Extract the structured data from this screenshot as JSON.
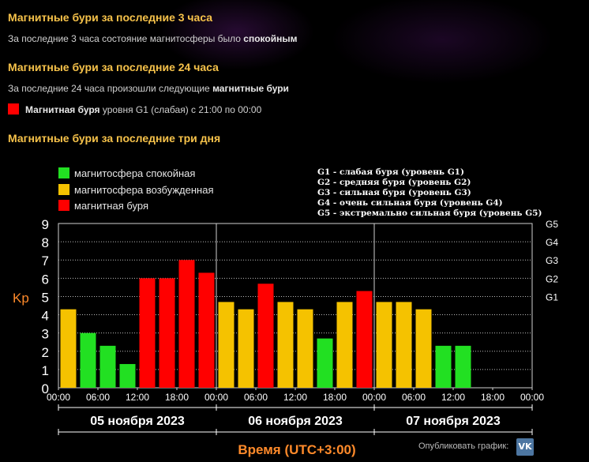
{
  "sections": {
    "h1": "Магнитные бури за последние 3 часа",
    "p1_text": "За последние 3 часа состояние магнитосферы было ",
    "p1_bold": "спокойным",
    "h2": "Магнитные бури за последние 24 часа",
    "p2_text": "За последние 24 часа произошли следующие ",
    "p2_bold": "магнитные бури",
    "event_bold": "Магнитная буря",
    "event_text": " уровня G1 (слабая) с 21:00 по 00:00",
    "h3": "Магнитные бури за последние три дня"
  },
  "legend": [
    {
      "label": "магнитосфера спокойная",
      "color": "#22e022"
    },
    {
      "label": "магнитосфера возбужденная",
      "color": "#f5c200"
    },
    {
      "label": "магнитная буря",
      "color": "#ff0000"
    }
  ],
  "g_levels": [
    "G1 - слабая буря (уровень G1)",
    "G2 - средняя буря (уровень G2)",
    "G3 - сильная буря (уровень G3)",
    "G4 - очень сильная буря (уровень G4)",
    "G5 - экстремально сильная буря (уровень G5)"
  ],
  "publish": {
    "label": "Опубликовать график:",
    "icon": "vk-icon",
    "icon_text": "VK"
  },
  "colors": {
    "calm": "#22e022",
    "excited": "#f5c200",
    "storm": "#ff0000",
    "heading": "#f6c24a",
    "axis_title": "#ff8a2a"
  },
  "chart_data": {
    "type": "bar",
    "ylabel": "Kp",
    "xlabel": "Время (UTC+3:00)",
    "ylim": [
      0,
      9
    ],
    "yticks": [
      0,
      1,
      2,
      3,
      4,
      5,
      6,
      7,
      8,
      9
    ],
    "right_ticks": [
      {
        "label": "G1",
        "value": 5
      },
      {
        "label": "G2",
        "value": 6
      },
      {
        "label": "G3",
        "value": 7
      },
      {
        "label": "G4",
        "value": 8
      },
      {
        "label": "G5",
        "value": 9
      }
    ],
    "xticks": [
      "00:00",
      "06:00",
      "12:00",
      "18:00",
      "00:00",
      "06:00",
      "12:00",
      "18:00",
      "00:00",
      "06:00",
      "12:00",
      "18:00",
      "00:00"
    ],
    "days": [
      "05 ноября 2023",
      "06 ноября 2023",
      "07 ноября 2023"
    ],
    "grid": true,
    "legend_position": "top-left",
    "values": [
      4.3,
      3.0,
      2.3,
      1.3,
      6.0,
      6.0,
      7.0,
      6.3,
      4.7,
      4.3,
      5.7,
      4.7,
      4.3,
      2.7,
      4.7,
      5.3,
      4.7,
      4.7,
      4.3,
      2.3,
      2.3,
      null,
      null,
      null
    ],
    "levels": [
      "excited",
      "calm",
      "calm",
      "calm",
      "storm",
      "storm",
      "storm",
      "storm",
      "excited",
      "excited",
      "storm",
      "excited",
      "excited",
      "calm",
      "excited",
      "storm",
      "excited",
      "excited",
      "excited",
      "calm",
      "calm",
      null,
      null,
      null
    ]
  }
}
